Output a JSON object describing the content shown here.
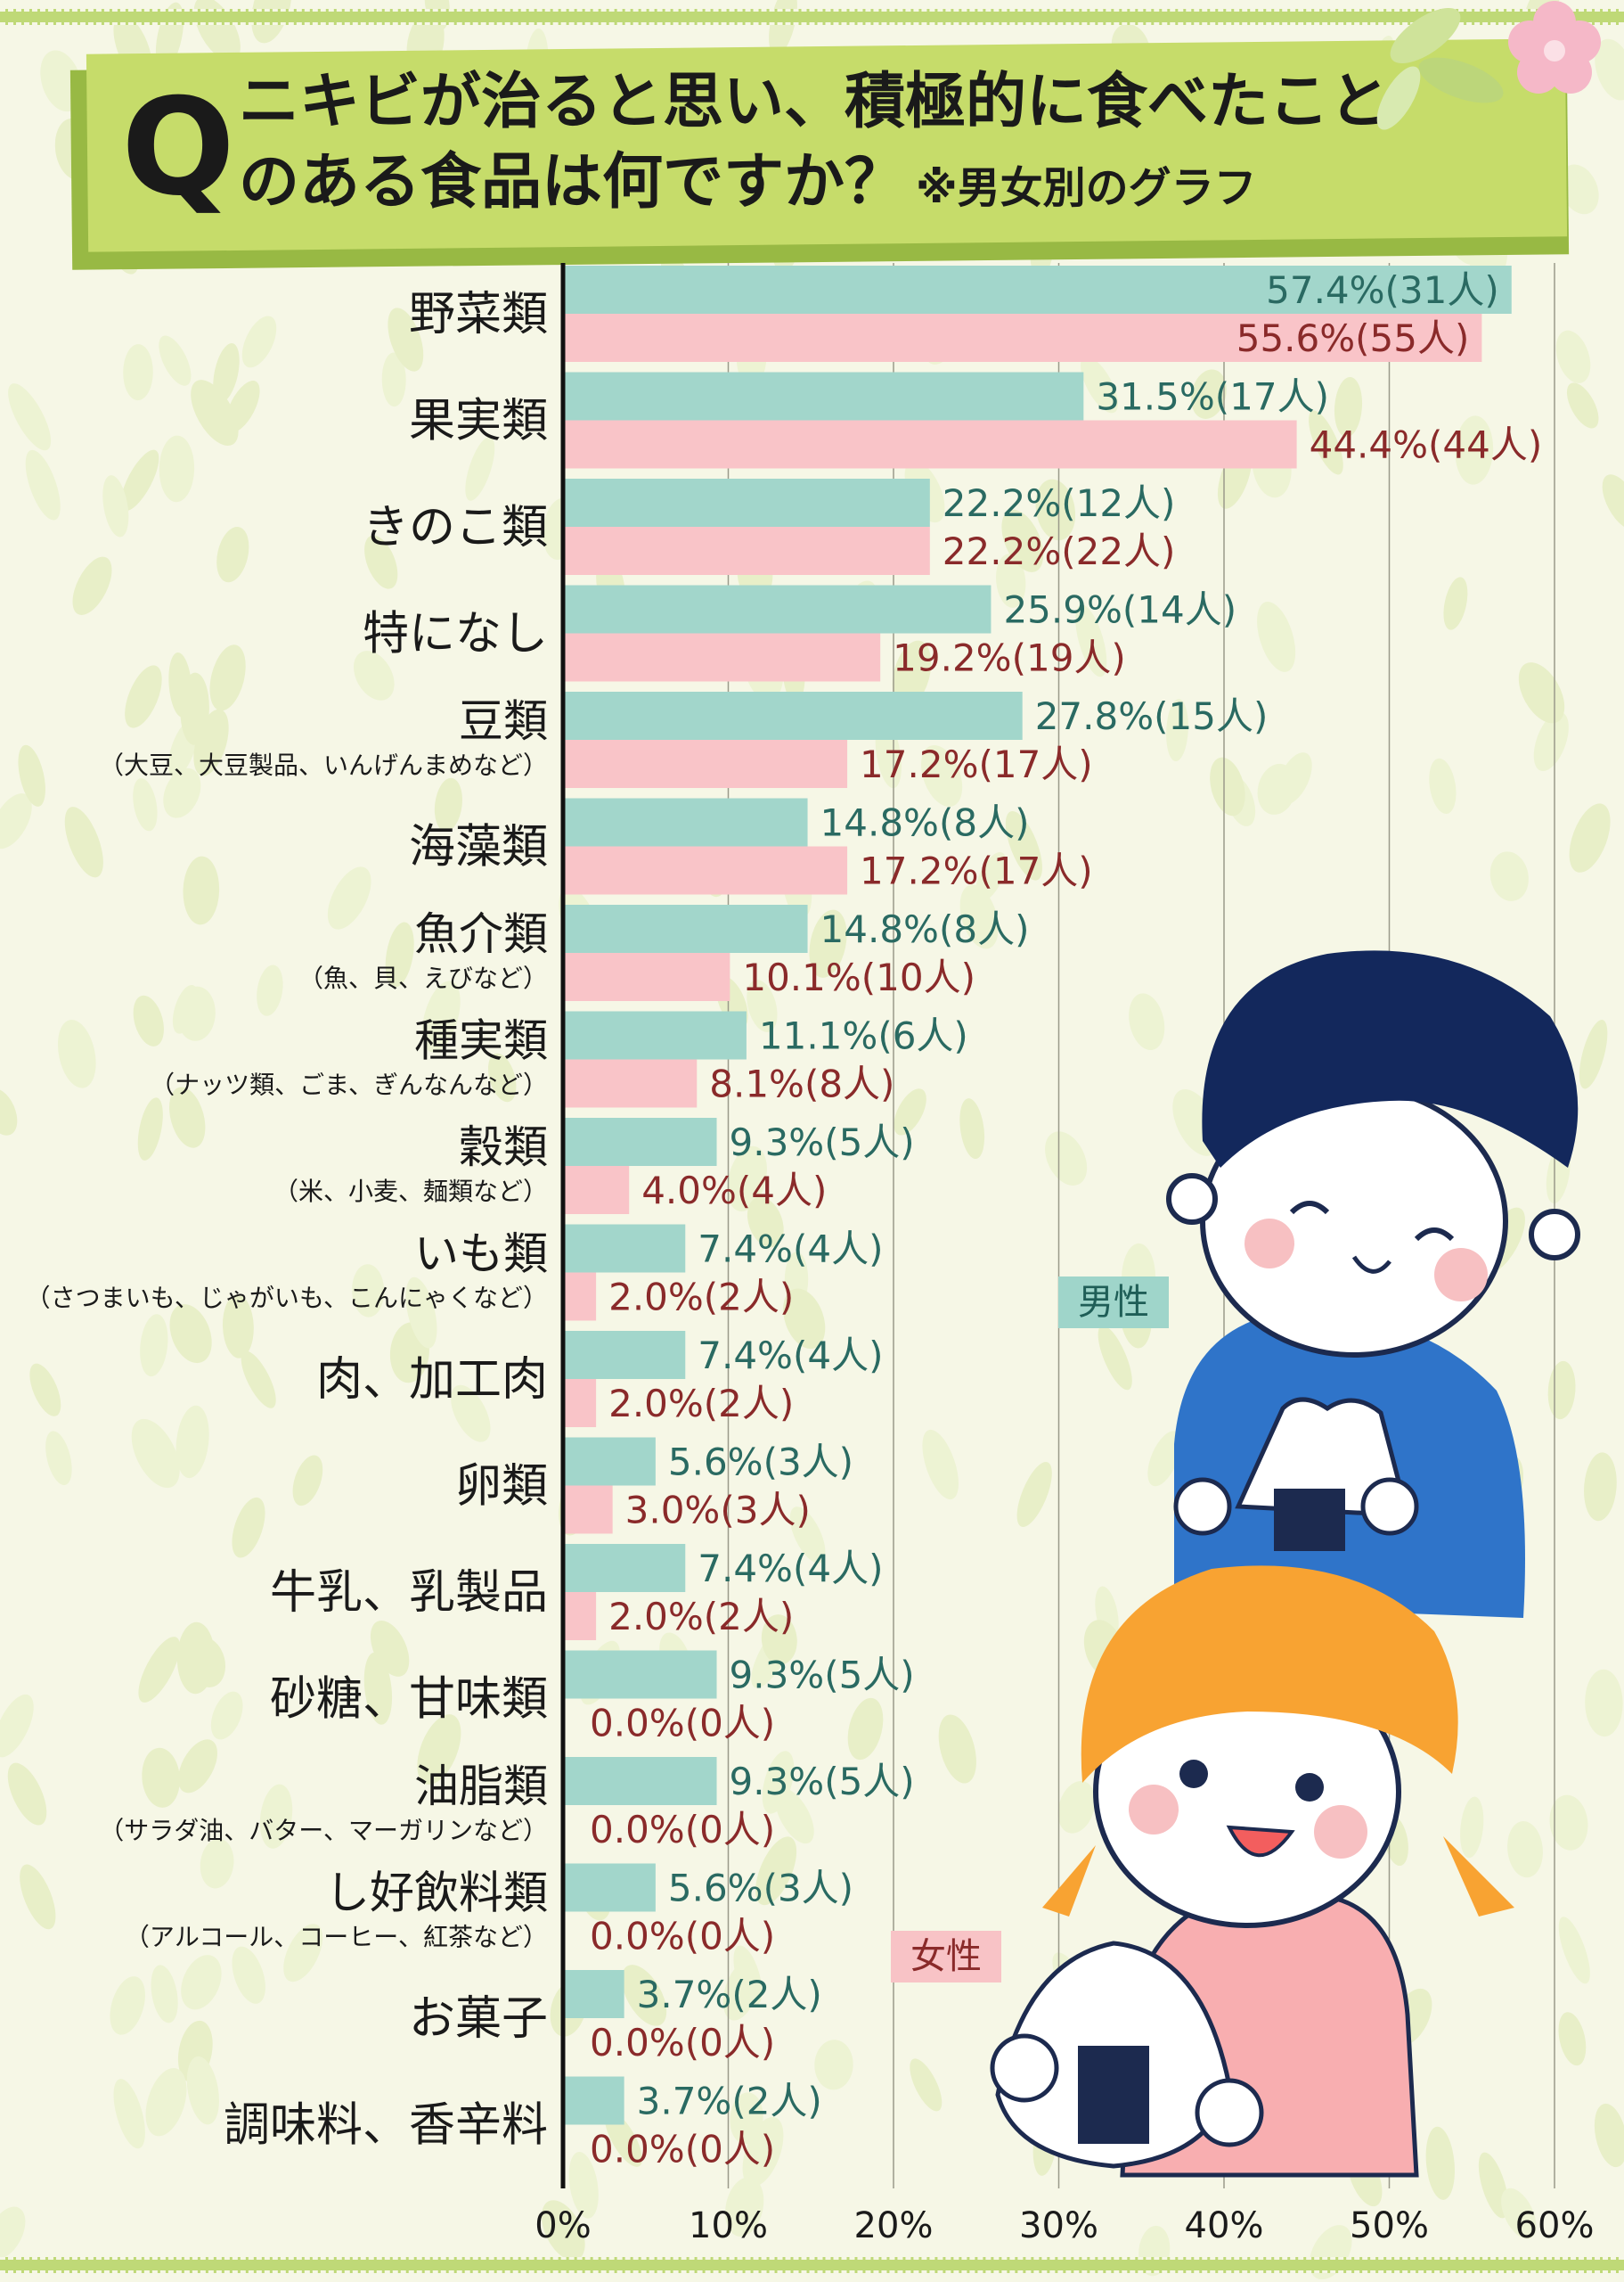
{
  "title": {
    "q": "Q",
    "line1": "ニキビが治ると思い、積極的に食べたこと",
    "line2": "のある食品は何ですか？",
    "note": "※男女別のグラフ"
  },
  "legend": {
    "male": "男性",
    "female": "女性"
  },
  "colors": {
    "male_bar": "#a2d6cb",
    "female_bar": "#f9c4c8",
    "male_text": "#2a6a62",
    "female_text": "#8a2a2a",
    "banner": "#c6dc6a",
    "background": "#f6f7e6"
  },
  "chart_data": {
    "type": "bar",
    "orientation": "horizontal",
    "xlim": [
      0,
      60
    ],
    "ticks": [
      "0%",
      "10%",
      "20%",
      "30%",
      "40%",
      "50%",
      "60%"
    ],
    "grid": true,
    "categories": [
      {
        "label": "野菜類",
        "sub": ""
      },
      {
        "label": "果実類",
        "sub": ""
      },
      {
        "label": "きのこ類",
        "sub": ""
      },
      {
        "label": "特になし",
        "sub": ""
      },
      {
        "label": "豆類",
        "sub": "（大豆、大豆製品、いんげんまめなど）"
      },
      {
        "label": "海藻類",
        "sub": ""
      },
      {
        "label": "魚介類",
        "sub": "（魚、貝、えびなど）"
      },
      {
        "label": "種実類",
        "sub": "（ナッツ類、ごま、ぎんなんなど）"
      },
      {
        "label": "穀類",
        "sub": "（米、小麦、麺類など）"
      },
      {
        "label": "いも類",
        "sub": "（さつまいも、じゃがいも、こんにゃくなど）"
      },
      {
        "label": "肉、加工肉",
        "sub": ""
      },
      {
        "label": "卵類",
        "sub": ""
      },
      {
        "label": "牛乳、乳製品",
        "sub": ""
      },
      {
        "label": "砂糖、甘味類",
        "sub": ""
      },
      {
        "label": "油脂類",
        "sub": "（サラダ油、バター、マーガリンなど）"
      },
      {
        "label": "し好飲料類",
        "sub": "（アルコール、コーヒー、紅茶など）"
      },
      {
        "label": "お菓子",
        "sub": ""
      },
      {
        "label": "調味料、香辛料",
        "sub": ""
      }
    ],
    "series": [
      {
        "name": "男性",
        "values": [
          57.4,
          31.5,
          22.2,
          25.9,
          27.8,
          14.8,
          14.8,
          11.1,
          9.3,
          7.4,
          7.4,
          5.6,
          7.4,
          9.3,
          9.3,
          5.6,
          3.7,
          3.7
        ],
        "labels": [
          "57.4%(31人)",
          "31.5%(17人)",
          "22.2%(12人)",
          "25.9%(14人)",
          "27.8%(15人)",
          "14.8%(8人)",
          "14.8%(8人)",
          "11.1%(6人)",
          "9.3%(5人)",
          "7.4%(4人)",
          "7.4%(4人)",
          "5.6%(3人)",
          "7.4%(4人)",
          "9.3%(5人)",
          "9.3%(5人)",
          "5.6%(3人)",
          "3.7%(2人)",
          "3.7%(2人)"
        ]
      },
      {
        "name": "女性",
        "values": [
          55.6,
          44.4,
          22.2,
          19.2,
          17.2,
          17.2,
          10.1,
          8.1,
          4.0,
          2.0,
          2.0,
          3.0,
          2.0,
          0.0,
          0.0,
          0.0,
          0.0,
          0.0
        ],
        "labels": [
          "55.6%(55人)",
          "44.4%(44人)",
          "22.2%(22人)",
          "19.2%(19人)",
          "17.2%(17人)",
          "17.2%(17人)",
          "10.1%(10人)",
          "8.1%(8人)",
          "4.0%(4人)",
          "2.0%(2人)",
          "2.0%(2人)",
          "3.0%(3人)",
          "2.0%(2人)",
          "0.0%(0人)",
          "0.0%(0人)",
          "0.0%(0人)",
          "0.0%(0人)",
          "0.0%(0人)"
        ]
      }
    ]
  }
}
